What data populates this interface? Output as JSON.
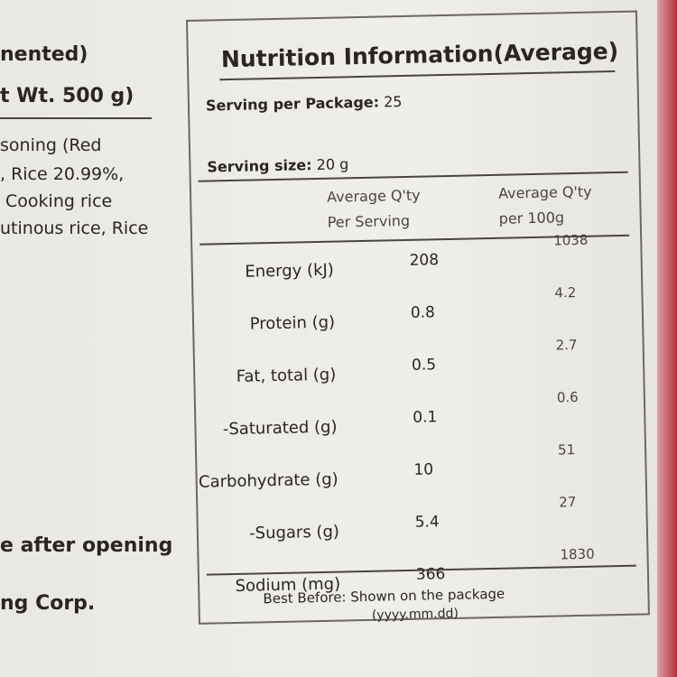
{
  "left_text": [
    "nented)",
    "t Wt. 500 g)",
    "soning (Red",
    ", Rice 20.99%,",
    " Cooking rice",
    "utinous rice, Rice",
    "e after opening",
    "ng Corp."
  ],
  "label": {
    "title": "Nutrition Information(Average)",
    "serving_per_package": {
      "label": "Serving per Package:",
      "value": "25"
    },
    "serving_size": {
      "label": "Serving size:",
      "value": "20 g"
    },
    "table": {
      "headers": [
        [
          "Average Q'ty",
          "Per Serving"
        ],
        [
          "Average Q'ty",
          "per 100g"
        ]
      ],
      "rows": [
        [
          "Energy (kJ)",
          208,
          1038
        ],
        [
          "Protein (g)",
          0.8,
          4.2
        ],
        [
          "Fat, total (g)",
          0.5,
          2.7
        ],
        [
          "-Saturated (g)",
          0.1,
          0.6
        ],
        [
          "Carbohydrate (g)",
          10,
          51
        ],
        [
          "-Sugars (g)",
          5.4,
          27
        ],
        [
          "Sodium (mg)",
          366,
          1830
        ]
      ]
    },
    "best_before": "Best Before: Shown on the package",
    "date_format": "(yyyy.mm.dd)"
  }
}
